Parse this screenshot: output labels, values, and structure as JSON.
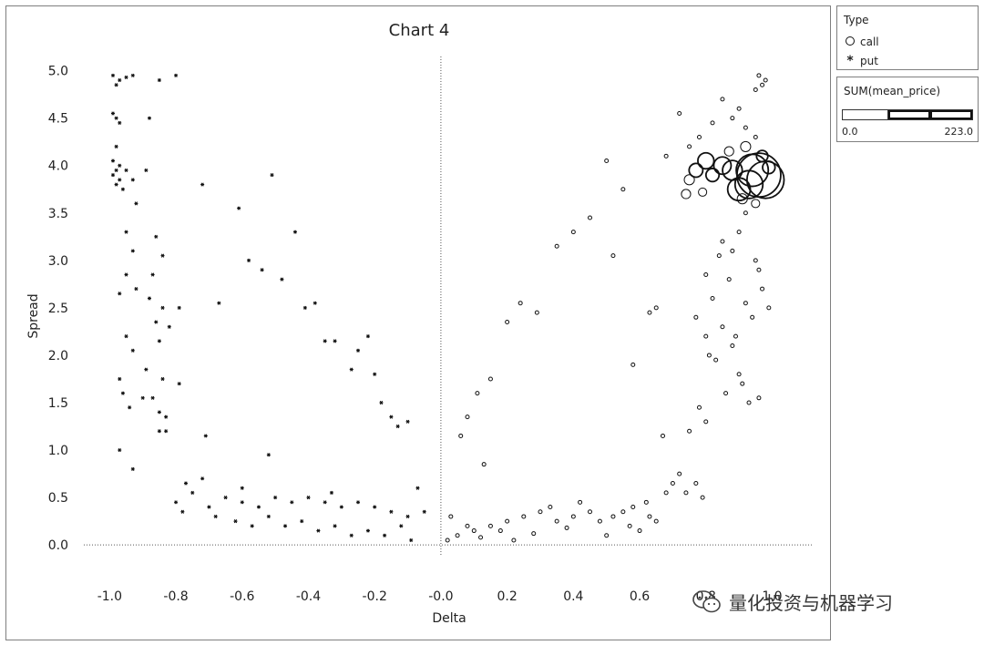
{
  "chart_data": {
    "type": "scatter",
    "title": "Chart 4",
    "xlabel": "Delta",
    "ylabel": "Spread",
    "xlim": [
      -1.1,
      1.15
    ],
    "ylim": [
      -0.2,
      5.15
    ],
    "x_ticks": [
      "-1.0",
      "-0.8",
      "-0.6",
      "-0.4",
      "-0.2",
      "-0.0",
      "0.2",
      "0.4",
      "0.6",
      "0.8",
      "1.0"
    ],
    "x_tick_values": [
      -1.0,
      -0.8,
      -0.6,
      -0.4,
      -0.2,
      0.0,
      0.2,
      0.4,
      0.6,
      0.8,
      1.0
    ],
    "y_ticks": [
      "0.0",
      "0.5",
      "1.0",
      "1.5",
      "2.0",
      "2.5",
      "3.0",
      "3.5",
      "4.0",
      "4.5",
      "5.0"
    ],
    "y_tick_values": [
      0.0,
      0.5,
      1.0,
      1.5,
      2.0,
      2.5,
      3.0,
      3.5,
      4.0,
      4.5,
      5.0
    ],
    "grid": false,
    "reference_lines": {
      "x": 0.0,
      "y": 0.0,
      "style": "dotted"
    },
    "legend_position": "right",
    "series": [
      {
        "name": "call",
        "marker": "circle",
        "points": [
          [
            0.96,
            3.9,
            223
          ],
          [
            0.98,
            3.85,
            160
          ],
          [
            0.94,
            3.95,
            120
          ],
          [
            0.93,
            3.8,
            90
          ],
          [
            0.9,
            3.75,
            60
          ],
          [
            0.88,
            3.95,
            45
          ],
          [
            0.85,
            4.0,
            35
          ],
          [
            0.8,
            4.05,
            30
          ],
          [
            0.77,
            3.95,
            22
          ],
          [
            0.82,
            3.9,
            20
          ],
          [
            0.75,
            3.85,
            12
          ],
          [
            0.74,
            3.7,
            10
          ],
          [
            0.79,
            3.72,
            8
          ],
          [
            0.92,
            4.2,
            12
          ],
          [
            0.87,
            4.15,
            10
          ],
          [
            0.97,
            4.1,
            15
          ],
          [
            0.99,
            3.98,
            18
          ],
          [
            0.91,
            3.65,
            12
          ],
          [
            0.95,
            3.6,
            8
          ],
          [
            0.96,
            4.95,
            1
          ],
          [
            0.98,
            4.9,
            1
          ],
          [
            0.95,
            4.8,
            1
          ],
          [
            0.97,
            4.85,
            1
          ],
          [
            0.9,
            4.6,
            1
          ],
          [
            0.88,
            4.5,
            1
          ],
          [
            0.85,
            4.7,
            1
          ],
          [
            0.82,
            4.45,
            1
          ],
          [
            0.92,
            4.4,
            1
          ],
          [
            0.95,
            4.3,
            1
          ],
          [
            0.75,
            4.2,
            1
          ],
          [
            0.72,
            4.55,
            1
          ],
          [
            0.68,
            4.1,
            1
          ],
          [
            0.78,
            4.3,
            1
          ],
          [
            0.92,
            3.5,
            1
          ],
          [
            0.9,
            3.3,
            1
          ],
          [
            0.88,
            3.1,
            1
          ],
          [
            0.95,
            3.0,
            1
          ],
          [
            0.85,
            3.2,
            1
          ],
          [
            0.8,
            2.85,
            1
          ],
          [
            0.82,
            2.6,
            1
          ],
          [
            0.87,
            2.8,
            1
          ],
          [
            0.92,
            2.55,
            1
          ],
          [
            0.94,
            2.4,
            1
          ],
          [
            0.85,
            2.3,
            1
          ],
          [
            0.8,
            2.2,
            1
          ],
          [
            0.88,
            2.1,
            1
          ],
          [
            0.83,
            1.95,
            1
          ],
          [
            0.9,
            1.8,
            1
          ],
          [
            0.86,
            1.6,
            1
          ],
          [
            0.93,
            1.5,
            1
          ],
          [
            0.78,
            1.45,
            1
          ],
          [
            0.8,
            1.3,
            1
          ],
          [
            0.75,
            1.2,
            1
          ],
          [
            0.97,
            2.7,
            1
          ],
          [
            0.99,
            2.5,
            1
          ],
          [
            0.96,
            2.9,
            1
          ],
          [
            0.77,
            2.4,
            1
          ],
          [
            0.84,
            3.05,
            1
          ],
          [
            0.81,
            2.0,
            1
          ],
          [
            0.89,
            2.2,
            1
          ],
          [
            0.91,
            1.7,
            1
          ],
          [
            0.96,
            1.55,
            1
          ],
          [
            0.5,
            4.05,
            1
          ],
          [
            0.55,
            3.75,
            1
          ],
          [
            0.4,
            3.3,
            1
          ],
          [
            0.45,
            3.45,
            1
          ],
          [
            0.35,
            3.15,
            1
          ],
          [
            0.52,
            3.05,
            1
          ],
          [
            0.63,
            2.45,
            1
          ],
          [
            0.65,
            2.5,
            1
          ],
          [
            0.58,
            1.9,
            1
          ],
          [
            0.67,
            1.15,
            1
          ],
          [
            0.2,
            2.35,
            1
          ],
          [
            0.24,
            2.55,
            1
          ],
          [
            0.29,
            2.45,
            1
          ],
          [
            0.15,
            1.75,
            1
          ],
          [
            0.11,
            1.6,
            1
          ],
          [
            0.08,
            1.35,
            1
          ],
          [
            0.06,
            1.15,
            1
          ],
          [
            0.13,
            0.85,
            1
          ],
          [
            0.72,
            0.75,
            1
          ],
          [
            0.7,
            0.65,
            1
          ],
          [
            0.68,
            0.55,
            1
          ],
          [
            0.62,
            0.45,
            1
          ],
          [
            0.58,
            0.4,
            1
          ],
          [
            0.55,
            0.35,
            1
          ],
          [
            0.52,
            0.3,
            1
          ],
          [
            0.48,
            0.25,
            1
          ],
          [
            0.45,
            0.35,
            1
          ],
          [
            0.4,
            0.3,
            1
          ],
          [
            0.35,
            0.25,
            1
          ],
          [
            0.3,
            0.35,
            1
          ],
          [
            0.25,
            0.3,
            1
          ],
          [
            0.2,
            0.25,
            1
          ],
          [
            0.15,
            0.2,
            1
          ],
          [
            0.1,
            0.15,
            1
          ],
          [
            0.05,
            0.1,
            1
          ],
          [
            0.03,
            0.3,
            1
          ],
          [
            0.08,
            0.2,
            1
          ],
          [
            0.18,
            0.15,
            1
          ],
          [
            0.28,
            0.12,
            1
          ],
          [
            0.38,
            0.18,
            1
          ],
          [
            0.5,
            0.1,
            1
          ],
          [
            0.6,
            0.15,
            1
          ],
          [
            0.65,
            0.25,
            1
          ],
          [
            0.74,
            0.55,
            1
          ],
          [
            0.77,
            0.65,
            1
          ],
          [
            0.79,
            0.5,
            1
          ],
          [
            0.63,
            0.3,
            1
          ],
          [
            0.57,
            0.2,
            1
          ],
          [
            0.42,
            0.45,
            1
          ],
          [
            0.33,
            0.4,
            1
          ],
          [
            0.22,
            0.05,
            1
          ],
          [
            0.12,
            0.08,
            1
          ],
          [
            0.02,
            0.05,
            1
          ]
        ]
      },
      {
        "name": "put",
        "marker": "star",
        "points": [
          [
            -0.99,
            4.95,
            1
          ],
          [
            -0.97,
            4.9,
            1
          ],
          [
            -0.95,
            4.93,
            1
          ],
          [
            -0.93,
            4.95,
            1
          ],
          [
            -0.98,
            4.85,
            1
          ],
          [
            -0.85,
            4.9,
            1
          ],
          [
            -0.8,
            4.95,
            1
          ],
          [
            -0.88,
            4.5,
            1
          ],
          [
            -0.99,
            4.55,
            1
          ],
          [
            -0.98,
            4.5,
            1
          ],
          [
            -0.97,
            4.45,
            1
          ],
          [
            -0.98,
            4.2,
            1
          ],
          [
            -0.99,
            4.05,
            1
          ],
          [
            -0.97,
            4.0,
            1
          ],
          [
            -0.98,
            3.95,
            1
          ],
          [
            -0.99,
            3.9,
            1
          ],
          [
            -0.97,
            3.85,
            1
          ],
          [
            -0.98,
            3.8,
            1
          ],
          [
            -0.96,
            3.75,
            1
          ],
          [
            -0.95,
            3.95,
            1
          ],
          [
            -0.93,
            3.85,
            1
          ],
          [
            -0.92,
            3.6,
            1
          ],
          [
            -0.89,
            3.95,
            1
          ],
          [
            -0.95,
            3.3,
            1
          ],
          [
            -0.93,
            3.1,
            1
          ],
          [
            -0.95,
            2.85,
            1
          ],
          [
            -0.92,
            2.7,
            1
          ],
          [
            -0.97,
            2.65,
            1
          ],
          [
            -0.86,
            3.25,
            1
          ],
          [
            -0.84,
            3.05,
            1
          ],
          [
            -0.87,
            2.85,
            1
          ],
          [
            -0.88,
            2.6,
            1
          ],
          [
            -0.84,
            2.5,
            1
          ],
          [
            -0.82,
            2.3,
            1
          ],
          [
            -0.79,
            2.5,
            1
          ],
          [
            -0.86,
            2.35,
            1
          ],
          [
            -0.95,
            2.2,
            1
          ],
          [
            -0.93,
            2.05,
            1
          ],
          [
            -0.89,
            1.85,
            1
          ],
          [
            -0.85,
            2.15,
            1
          ],
          [
            -0.84,
            1.75,
            1
          ],
          [
            -0.79,
            1.7,
            1
          ],
          [
            -0.97,
            1.75,
            1
          ],
          [
            -0.96,
            1.6,
            1
          ],
          [
            -0.9,
            1.55,
            1
          ],
          [
            -0.87,
            1.55,
            1
          ],
          [
            -0.94,
            1.45,
            1
          ],
          [
            -0.85,
            1.4,
            1
          ],
          [
            -0.83,
            1.35,
            1
          ],
          [
            -0.85,
            1.2,
            1
          ],
          [
            -0.83,
            1.2,
            1
          ],
          [
            -0.97,
            1.0,
            1
          ],
          [
            -0.93,
            0.8,
            1
          ],
          [
            -0.72,
            3.8,
            1
          ],
          [
            -0.61,
            3.55,
            1
          ],
          [
            -0.58,
            3.0,
            1
          ],
          [
            -0.54,
            2.9,
            1
          ],
          [
            -0.51,
            3.9,
            1
          ],
          [
            -0.44,
            3.3,
            1
          ],
          [
            -0.48,
            2.8,
            1
          ],
          [
            -0.41,
            2.5,
            1
          ],
          [
            -0.38,
            2.55,
            1
          ],
          [
            -0.35,
            2.15,
            1
          ],
          [
            -0.32,
            2.15,
            1
          ],
          [
            -0.25,
            2.05,
            1
          ],
          [
            -0.27,
            1.85,
            1
          ],
          [
            -0.22,
            2.2,
            1
          ],
          [
            -0.2,
            1.8,
            1
          ],
          [
            -0.18,
            1.5,
            1
          ],
          [
            -0.15,
            1.35,
            1
          ],
          [
            -0.13,
            1.25,
            1
          ],
          [
            -0.1,
            1.3,
            1
          ],
          [
            -0.67,
            2.55,
            1
          ],
          [
            -0.71,
            1.15,
            1
          ],
          [
            -0.52,
            0.95,
            1
          ],
          [
            -0.77,
            0.65,
            1
          ],
          [
            -0.72,
            0.7,
            1
          ],
          [
            -0.75,
            0.55,
            1
          ],
          [
            -0.8,
            0.45,
            1
          ],
          [
            -0.78,
            0.35,
            1
          ],
          [
            -0.7,
            0.4,
            1
          ],
          [
            -0.65,
            0.5,
            1
          ],
          [
            -0.6,
            0.45,
            1
          ],
          [
            -0.55,
            0.4,
            1
          ],
          [
            -0.5,
            0.5,
            1
          ],
          [
            -0.45,
            0.45,
            1
          ],
          [
            -0.4,
            0.5,
            1
          ],
          [
            -0.35,
            0.45,
            1
          ],
          [
            -0.3,
            0.4,
            1
          ],
          [
            -0.25,
            0.45,
            1
          ],
          [
            -0.2,
            0.4,
            1
          ],
          [
            -0.15,
            0.35,
            1
          ],
          [
            -0.1,
            0.3,
            1
          ],
          [
            -0.07,
            0.6,
            1
          ],
          [
            -0.05,
            0.35,
            1
          ],
          [
            -0.68,
            0.3,
            1
          ],
          [
            -0.62,
            0.25,
            1
          ],
          [
            -0.57,
            0.2,
            1
          ],
          [
            -0.52,
            0.3,
            1
          ],
          [
            -0.47,
            0.2,
            1
          ],
          [
            -0.42,
            0.25,
            1
          ],
          [
            -0.37,
            0.15,
            1
          ],
          [
            -0.32,
            0.2,
            1
          ],
          [
            -0.27,
            0.1,
            1
          ],
          [
            -0.22,
            0.15,
            1
          ],
          [
            -0.17,
            0.1,
            1
          ],
          [
            -0.12,
            0.2,
            1
          ],
          [
            -0.09,
            0.05,
            1
          ],
          [
            -0.6,
            0.6,
            1
          ],
          [
            -0.33,
            0.55,
            1
          ]
        ]
      }
    ]
  },
  "legend": {
    "type_title": "Type",
    "type_items": [
      {
        "label": "call",
        "icon": "circle-marker-icon"
      },
      {
        "label": "put",
        "icon": "star-marker-icon"
      }
    ],
    "size_title": "SUM(mean_price)",
    "size_min": "0.0",
    "size_max": "223.0"
  },
  "watermark": {
    "text": "量化投资与机器学习",
    "icon": "wechat-icon"
  }
}
